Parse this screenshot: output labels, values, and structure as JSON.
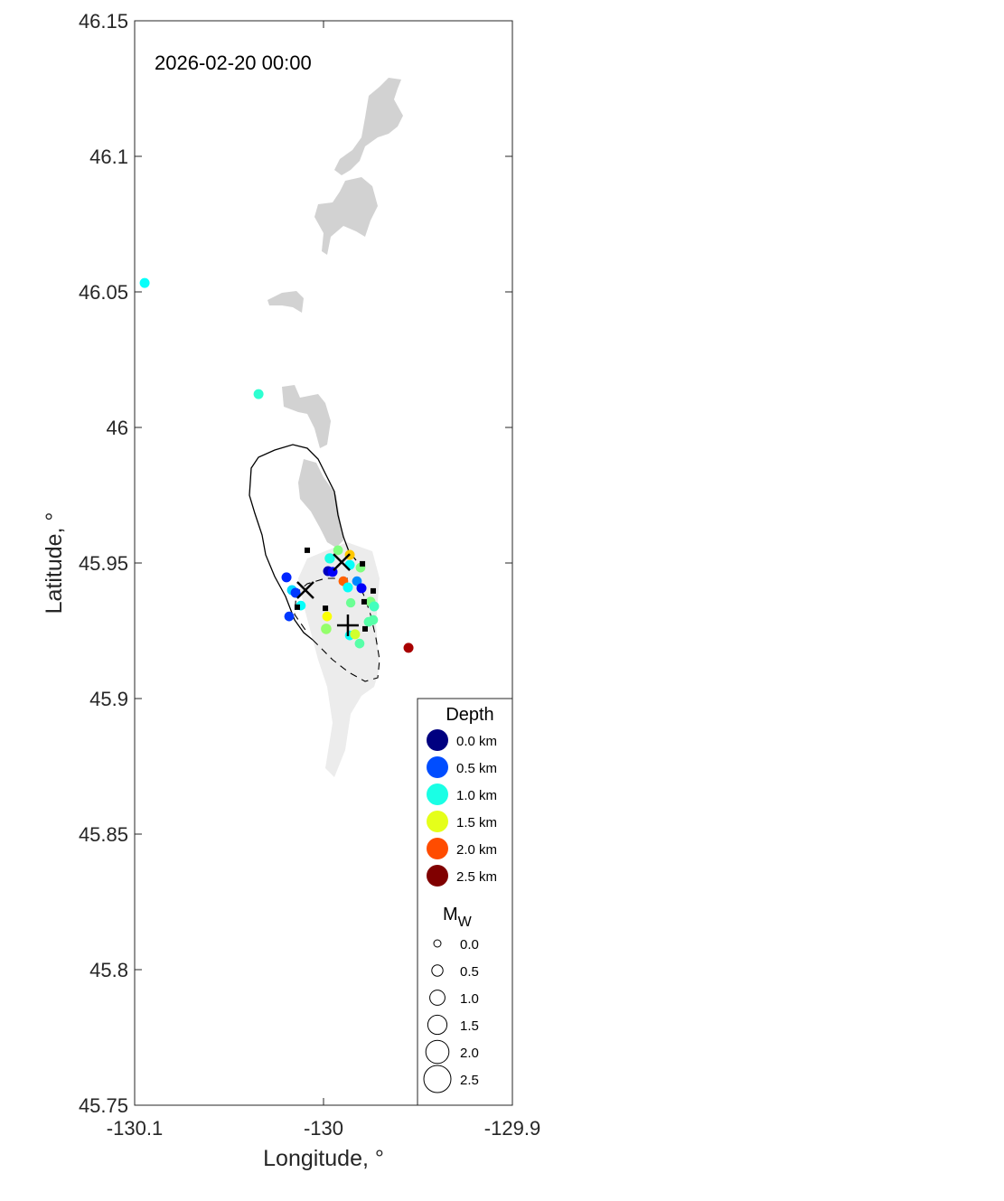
{
  "chart_data": {
    "type": "scatter",
    "annotation": "2026-02-20 00:00",
    "xlabel": "Longitude, °",
    "ylabel": "Latitude, °",
    "xlim": [
      -130.1,
      -129.9
    ],
    "ylim": [
      45.75,
      46.15
    ],
    "xticks": [
      {
        "v": -130.1,
        "label": "-130.1"
      },
      {
        "v": -130,
        "label": "-130"
      },
      {
        "v": -129.9,
        "label": "-129.9"
      }
    ],
    "yticks": [
      {
        "v": 45.75,
        "label": "45.75"
      },
      {
        "v": 45.8,
        "label": "45.8"
      },
      {
        "v": 45.85,
        "label": "45.85"
      },
      {
        "v": 45.9,
        "label": "45.9"
      },
      {
        "v": 45.95,
        "label": "45.95"
      },
      {
        "v": 46,
        "label": "46"
      },
      {
        "v": 46.05,
        "label": "46.05"
      },
      {
        "v": 46.1,
        "label": "46.1"
      },
      {
        "v": 46.15,
        "label": "46.15"
      }
    ],
    "grid": false,
    "colormap": "jet",
    "depth_range_km": [
      0,
      2.5
    ],
    "events": [
      {
        "lon": -130.0947,
        "lat": 46.0533,
        "depth": 0.95,
        "mw": 1.0
      },
      {
        "lon": -130.0344,
        "lat": 46.0123,
        "depth": 1.05,
        "mw": 1.0
      },
      {
        "lon": -129.955,
        "lat": 45.9187,
        "depth": 2.4,
        "mw": 1.0
      },
      {
        "lon": -129.9923,
        "lat": 45.9547,
        "depth": 1.25,
        "mw": 0.9
      },
      {
        "lon": -129.9861,
        "lat": 45.953,
        "depth": 1.7,
        "mw": 1.0
      },
      {
        "lon": -129.9967,
        "lat": 45.9517,
        "depth": 1.0,
        "mw": 1.1
      },
      {
        "lon": -129.9861,
        "lat": 45.9493,
        "depth": 0.95,
        "mw": 1.0
      },
      {
        "lon": -129.9804,
        "lat": 45.9483,
        "depth": 1.25,
        "mw": 0.9
      },
      {
        "lon": -129.9976,
        "lat": 45.947,
        "depth": 0.15,
        "mw": 1.0
      },
      {
        "lon": -129.9952,
        "lat": 45.9467,
        "depth": 0.3,
        "mw": 1.0
      },
      {
        "lon": -130.0196,
        "lat": 45.9447,
        "depth": 0.4,
        "mw": 1.0
      },
      {
        "lon": -129.9895,
        "lat": 45.9433,
        "depth": 1.95,
        "mw": 0.9
      },
      {
        "lon": -129.9823,
        "lat": 45.9433,
        "depth": 0.65,
        "mw": 0.9
      },
      {
        "lon": -129.9799,
        "lat": 45.9407,
        "depth": 0.3,
        "mw": 1.0
      },
      {
        "lon": -129.9871,
        "lat": 45.941,
        "depth": 0.95,
        "mw": 1.0
      },
      {
        "lon": -130.0167,
        "lat": 45.94,
        "depth": 0.85,
        "mw": 1.0
      },
      {
        "lon": -130.0148,
        "lat": 45.939,
        "depth": 0.45,
        "mw": 1.0
      },
      {
        "lon": -130.012,
        "lat": 45.9343,
        "depth": 0.95,
        "mw": 0.9
      },
      {
        "lon": -129.9856,
        "lat": 45.9353,
        "depth": 1.2,
        "mw": 0.8
      },
      {
        "lon": -129.9751,
        "lat": 45.9357,
        "depth": 1.25,
        "mw": 1.0
      },
      {
        "lon": -129.9732,
        "lat": 45.934,
        "depth": 1.1,
        "mw": 1.0
      },
      {
        "lon": -130.0182,
        "lat": 45.9303,
        "depth": 0.45,
        "mw": 0.9
      },
      {
        "lon": -129.9981,
        "lat": 45.9303,
        "depth": 1.55,
        "mw": 0.9
      },
      {
        "lon": -129.9737,
        "lat": 45.929,
        "depth": 1.15,
        "mw": 0.9
      },
      {
        "lon": -129.9761,
        "lat": 45.9283,
        "depth": 1.15,
        "mw": 0.9
      },
      {
        "lon": -129.9986,
        "lat": 45.9257,
        "depth": 1.3,
        "mw": 1.2
      },
      {
        "lon": -129.9861,
        "lat": 45.9233,
        "depth": 0.95,
        "mw": 0.9
      },
      {
        "lon": -129.9833,
        "lat": 45.9237,
        "depth": 1.45,
        "mw": 1.0
      },
      {
        "lon": -129.9809,
        "lat": 45.9203,
        "depth": 1.15,
        "mw": 0.9
      }
    ],
    "stations": [
      {
        "lon": -130.0086,
        "lat": 45.9547
      },
      {
        "lon": -129.9794,
        "lat": 45.9497
      },
      {
        "lon": -129.9737,
        "lat": 45.9397
      },
      {
        "lon": -129.9785,
        "lat": 45.9357
      },
      {
        "lon": -129.999,
        "lat": 45.9333
      },
      {
        "lon": -129.978,
        "lat": 45.9257
      },
      {
        "lon": -130.0139,
        "lat": 45.9337
      }
    ],
    "x_markers": [
      {
        "lon": -129.9904,
        "lat": 45.9503
      },
      {
        "lon": -130.0096,
        "lat": 45.94
      }
    ],
    "plus_markers": [
      {
        "lon": -129.9871,
        "lat": 45.927
      }
    ],
    "legend": {
      "placement": "bottom-right",
      "depth_title": "Depth",
      "depth_items": [
        {
          "v": 0,
          "label": "0.0 km"
        },
        {
          "v": 0.5,
          "label": "0.5 km"
        },
        {
          "v": 1.0,
          "label": "1.0 km"
        },
        {
          "v": 1.5,
          "label": "1.5 km"
        },
        {
          "v": 2.0,
          "label": "2.0 km"
        },
        {
          "v": 2.5,
          "label": "2.5 km"
        }
      ],
      "mw_title": "M",
      "mw_sub": "W",
      "mw_items": [
        {
          "v": 0,
          "label": "0.0"
        },
        {
          "v": 0.5,
          "label": "0.5"
        },
        {
          "v": 1.0,
          "label": "1.0"
        },
        {
          "v": 1.5,
          "label": "1.5"
        },
        {
          "v": 2.0,
          "label": "2.0"
        },
        {
          "v": 2.5,
          "label": "2.5"
        }
      ]
    }
  }
}
